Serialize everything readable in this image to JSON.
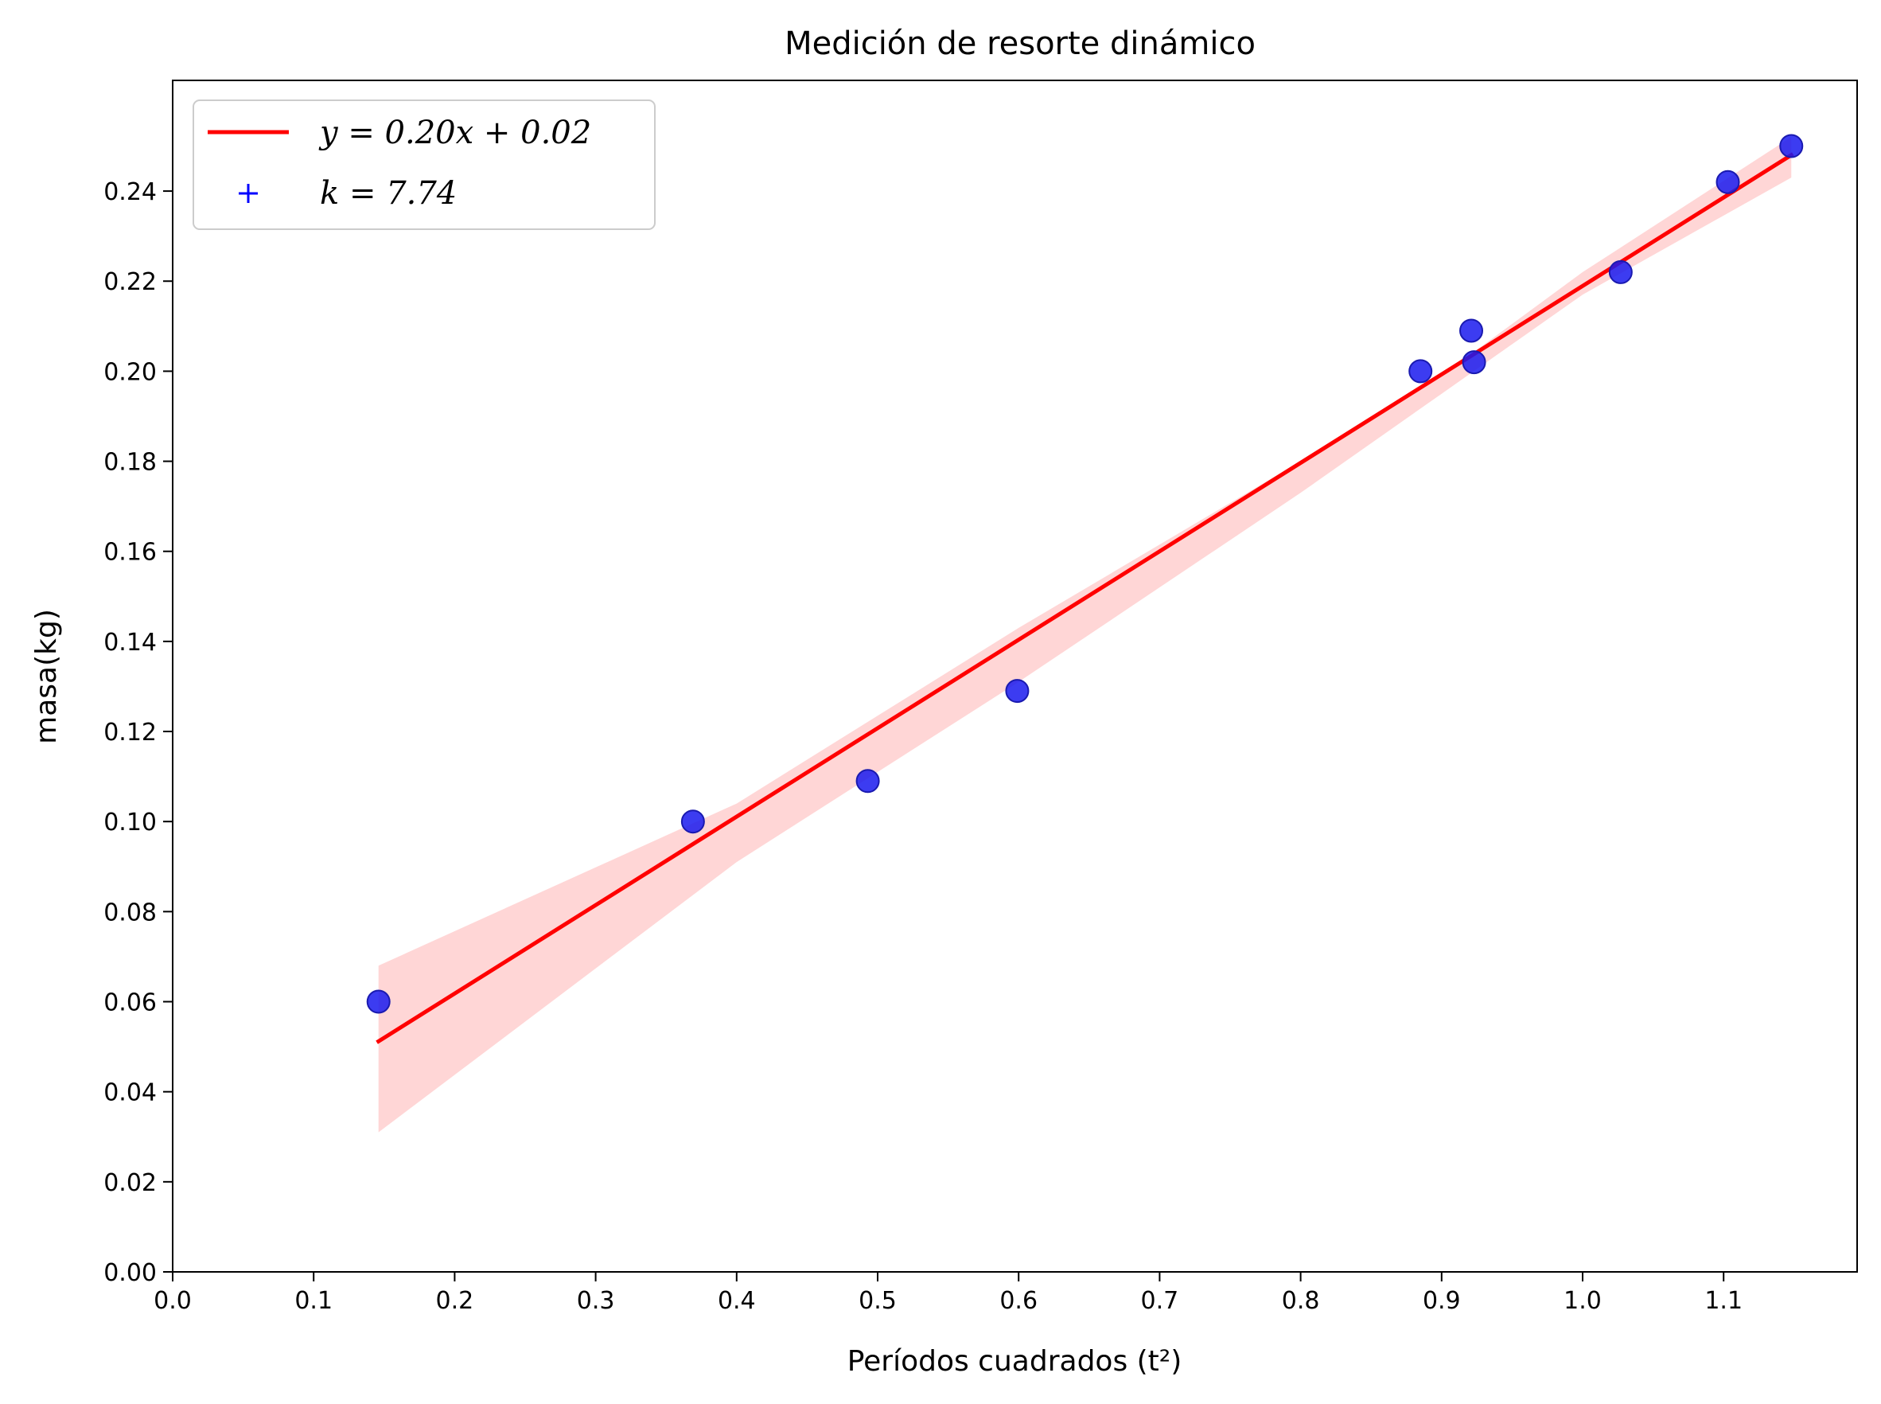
{
  "chart_data": {
    "type": "scatter",
    "title": "Medición de resorte dinámico",
    "xlabel": "Períodos cuadrados (t²)",
    "ylabel": "masa(kg)",
    "xlim": [
      0.0,
      1.2
    ],
    "ylim": [
      0.0,
      0.265
    ],
    "xticks": [
      0.0,
      0.1,
      0.2,
      0.3,
      0.4,
      0.5,
      0.6,
      0.7,
      0.8,
      0.9,
      1.0,
      1.1
    ],
    "yticks": [
      0.0,
      0.02,
      0.04,
      0.06,
      0.08,
      0.1,
      0.12,
      0.14,
      0.16,
      0.18,
      0.2,
      0.22,
      0.24
    ],
    "xtick_labels": [
      "0.0",
      "0.1",
      "0.2",
      "0.3",
      "0.4",
      "0.5",
      "0.6",
      "0.7",
      "0.8",
      "0.9",
      "1.0",
      "1.1"
    ],
    "ytick_labels": [
      "0.00",
      "0.02",
      "0.04",
      "0.06",
      "0.08",
      "0.10",
      "0.12",
      "0.14",
      "0.16",
      "0.18",
      "0.20",
      "0.22",
      "0.24"
    ],
    "grid": false,
    "legend_position": "top-left",
    "points": {
      "x": [
        0.146,
        0.369,
        0.493,
        0.599,
        0.885,
        0.921,
        0.923,
        1.027,
        1.103,
        1.148
      ],
      "y": [
        0.06,
        0.1,
        0.109,
        0.129,
        0.2,
        0.209,
        0.202,
        0.222,
        0.242,
        0.25
      ],
      "color": "#1a1aee"
    },
    "fit_line": {
      "x": [
        0.146,
        1.148
      ],
      "y": [
        0.0512,
        0.248
      ],
      "color": "#ff0000"
    },
    "confidence_band": {
      "x": [
        0.146,
        0.4,
        0.6,
        0.8,
        0.9,
        1.0,
        1.148
      ],
      "upper": [
        0.068,
        0.104,
        0.143,
        0.18,
        0.199,
        0.222,
        0.252
      ],
      "lower": [
        0.031,
        0.091,
        0.131,
        0.173,
        0.195,
        0.217,
        0.243
      ],
      "color": "#ffd6d6"
    },
    "legend": [
      {
        "label_prefix": "y",
        "label_suffix": " = 0.20x + 0.02",
        "marker": "line",
        "color": "#ff0000"
      },
      {
        "label_prefix": "k",
        "label_suffix": " = 7.74",
        "marker": "plus",
        "color": "#0000ff"
      }
    ]
  }
}
